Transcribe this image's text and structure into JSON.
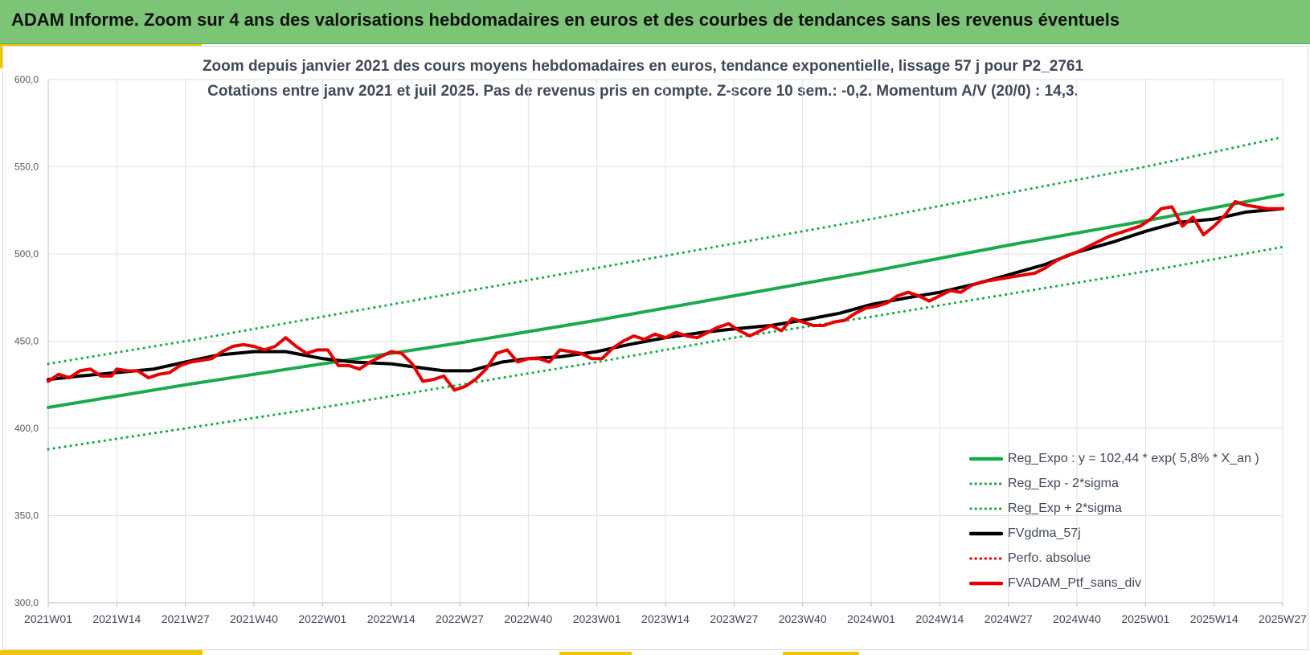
{
  "header": {
    "title": "ADAM Informe. Zoom sur 4 ans des valorisations hebdomadaires en euros et des courbes de tendances sans les revenus éventuels"
  },
  "chart_data": {
    "type": "line",
    "title": "Zoom depuis janvier 2021 des cours moyens hebdomadaires  en euros, tendance exponentielle, lissage 57 j pour P2_2761",
    "subtitle": "Cotations entre janv 2021 et juil 2025. Pas de revenus pris en compte. Z-score 10 sem.: -0,2. Momentum A/V (20/0) : 14,3.",
    "xlabel": "",
    "ylabel": "",
    "ylim": [
      300,
      600
    ],
    "yticks": [
      "600,0",
      "550,0",
      "500,0",
      "450,0",
      "400,0",
      "350,0",
      "300,0"
    ],
    "ytick_values": [
      600,
      550,
      500,
      450,
      400,
      350,
      300
    ],
    "xlim": [
      0,
      234
    ],
    "xticks": [
      "2021W01",
      "2021W14",
      "2021W27",
      "2021W40",
      "2022W01",
      "2022W14",
      "2022W27",
      "2022W40",
      "2023W01",
      "2023W14",
      "2023W27",
      "2023W40",
      "2024W01",
      "2024W14",
      "2024W27",
      "2024W40",
      "2025W01",
      "2025W14",
      "2025W27"
    ],
    "xtick_positions": [
      0,
      13,
      26,
      39,
      52,
      65,
      78,
      91,
      104,
      117,
      130,
      143,
      156,
      169,
      182,
      195,
      208,
      221,
      234
    ],
    "grid": true,
    "legend_position": "bottom-right",
    "series": [
      {
        "name": "Reg_Expo : y = 102,44 * exp( 5,8% *  X_an )",
        "color": "#1aaa4a",
        "style": "solid",
        "x": [
          0,
          26,
          52,
          78,
          104,
          130,
          156,
          182,
          208,
          234
        ],
        "values": [
          412,
          425,
          437,
          449,
          462,
          476,
          490,
          505,
          519,
          534
        ]
      },
      {
        "name": "Reg_Exp - 2*sigma",
        "color": "#1aaa4a",
        "style": "dotted",
        "x": [
          0,
          26,
          52,
          78,
          104,
          130,
          156,
          182,
          208,
          234
        ],
        "values": [
          388,
          400,
          412,
          425,
          438,
          452,
          464,
          477,
          490,
          504
        ]
      },
      {
        "name": "Reg_Exp + 2*sigma",
        "color": "#1aaa4a",
        "style": "dotted",
        "x": [
          0,
          26,
          52,
          78,
          104,
          130,
          156,
          182,
          208,
          234
        ],
        "values": [
          437,
          450,
          464,
          478,
          492,
          506,
          520,
          535,
          550,
          567
        ]
      },
      {
        "name": "FVgdma_57j",
        "color": "#000000",
        "style": "solid",
        "x": [
          0,
          6,
          13,
          20,
          26,
          32,
          39,
          45,
          52,
          58,
          65,
          70,
          75,
          80,
          86,
          91,
          97,
          104,
          110,
          117,
          124,
          130,
          137,
          143,
          150,
          156,
          163,
          169,
          176,
          182,
          189,
          195,
          202,
          208,
          214,
          221,
          227,
          234
        ],
        "values": [
          428,
          430,
          432,
          434,
          438,
          442,
          444,
          444,
          440,
          438,
          437,
          435,
          433,
          433,
          438,
          440,
          441,
          444,
          448,
          452,
          455,
          457,
          459,
          462,
          466,
          471,
          475,
          478,
          483,
          488,
          494,
          501,
          507,
          513,
          518,
          520,
          524,
          526
        ]
      },
      {
        "name": "Perfo. absolue",
        "color": "#e00000",
        "style": "dotted",
        "x": [],
        "values": []
      },
      {
        "name": "FVADAM_Ptf_sans_div",
        "color": "#e60000",
        "style": "solid",
        "x": [
          0,
          2,
          4,
          6,
          8,
          10,
          12,
          13,
          15,
          17,
          19,
          21,
          23,
          25,
          27,
          29,
          31,
          33,
          35,
          37,
          39,
          41,
          43,
          45,
          47,
          49,
          51,
          53,
          55,
          57,
          59,
          61,
          63,
          65,
          67,
          69,
          71,
          73,
          75,
          77,
          79,
          81,
          83,
          85,
          87,
          89,
          91,
          93,
          95,
          97,
          99,
          101,
          103,
          105,
          107,
          109,
          111,
          113,
          115,
          117,
          119,
          121,
          123,
          125,
          127,
          129,
          131,
          133,
          135,
          137,
          139,
          141,
          143,
          145,
          147,
          149,
          151,
          153,
          155,
          157,
          159,
          161,
          163,
          165,
          167,
          169,
          171,
          173,
          175,
          177,
          179,
          181,
          183,
          185,
          187,
          189,
          191,
          193,
          195,
          197,
          199,
          201,
          203,
          205,
          207,
          209,
          211,
          213,
          215,
          217,
          219,
          221,
          223,
          225,
          227,
          229,
          231,
          234
        ],
        "values": [
          427,
          431,
          429,
          433,
          434,
          430,
          430,
          434,
          433,
          433,
          429,
          431,
          432,
          436,
          438,
          439,
          440,
          444,
          447,
          448,
          447,
          445,
          447,
          452,
          447,
          443,
          445,
          445,
          436,
          436,
          434,
          438,
          441,
          444,
          443,
          437,
          427,
          428,
          430,
          422,
          424,
          428,
          434,
          443,
          445,
          438,
          440,
          440,
          438,
          445,
          444,
          443,
          440,
          440,
          446,
          450,
          453,
          451,
          454,
          452,
          455,
          453,
          452,
          455,
          458,
          460,
          456,
          453,
          456,
          459,
          456,
          463,
          461,
          459,
          459,
          461,
          462,
          466,
          469,
          470,
          472,
          476,
          478,
          476,
          473,
          476,
          479,
          478,
          482,
          484,
          485,
          486,
          487,
          488,
          489,
          492,
          496,
          499,
          501,
          504,
          507,
          510,
          512,
          514,
          516,
          520,
          526,
          527,
          516,
          521,
          511,
          516,
          522,
          530,
          528,
          527,
          526,
          526
        ]
      }
    ]
  }
}
